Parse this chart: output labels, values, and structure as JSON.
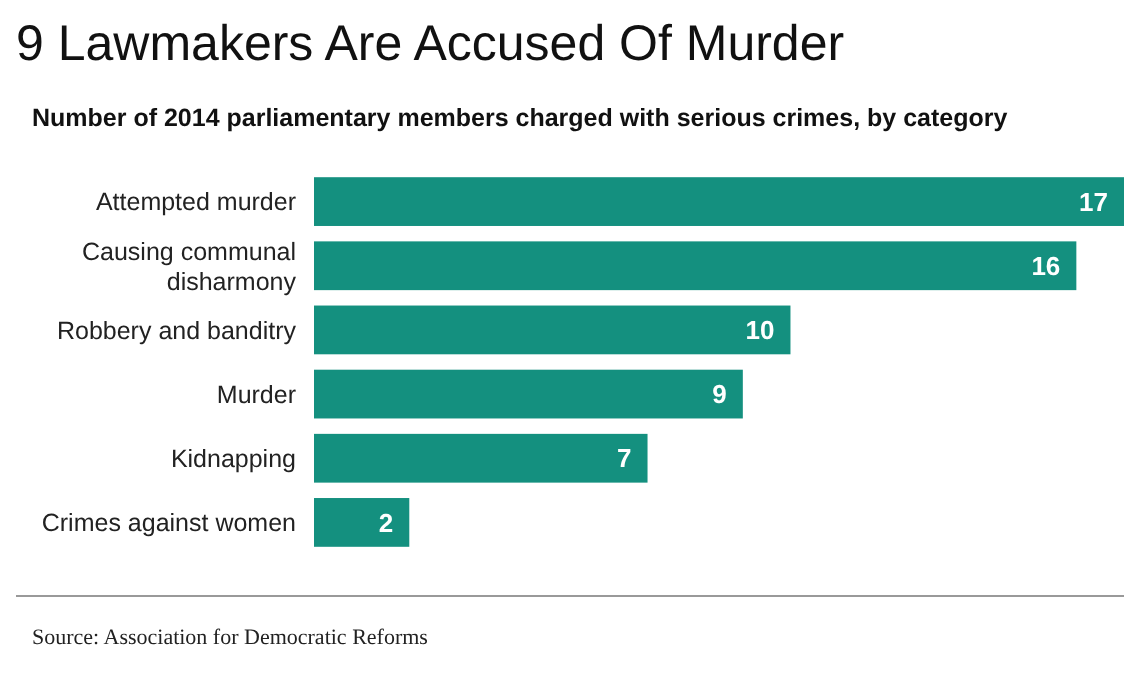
{
  "chart_data": {
    "type": "bar",
    "orientation": "horizontal",
    "title": "9 Lawmakers Are Accused Of Murder",
    "subtitle": "Number of 2014 parliamentary members charged with serious crimes, by category",
    "categories": [
      "Attempted murder",
      "Causing communal disharmony",
      "Robbery and banditry",
      "Murder",
      "Kidnapping",
      "Crimes against women"
    ],
    "values": [
      17,
      16,
      10,
      9,
      7,
      2
    ],
    "color": "#14907f",
    "data_labels": true,
    "annotations": [
      "Source: Association for Democratic Reforms"
    ]
  }
}
